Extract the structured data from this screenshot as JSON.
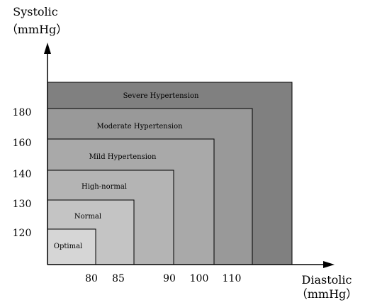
{
  "chart_data": {
    "type": "area",
    "title": "",
    "ylabel": "Systolic",
    "ylabel_unit": "（mmHg）",
    "xlabel": "Diastolic",
    "xlabel_unit": "（mmHg）",
    "y_ticks": [
      "120",
      "130",
      "140",
      "160",
      "180"
    ],
    "x_ticks": [
      "80",
      "85",
      "90",
      "100",
      "110"
    ],
    "grid": false,
    "legend": "none",
    "categories": [
      {
        "name": "Severe Hypertension",
        "color": "#808080"
      },
      {
        "name": "Moderate Hypertension",
        "color": "#999999"
      },
      {
        "name": "Mild Hypertension",
        "color": "#a9a9a9"
      },
      {
        "name": "High-normal",
        "color": "#b4b4b4"
      },
      {
        "name": "Normal",
        "color": "#c4c4c4"
      },
      {
        "name": "Optimal",
        "color": "#d6d6d6"
      }
    ]
  }
}
